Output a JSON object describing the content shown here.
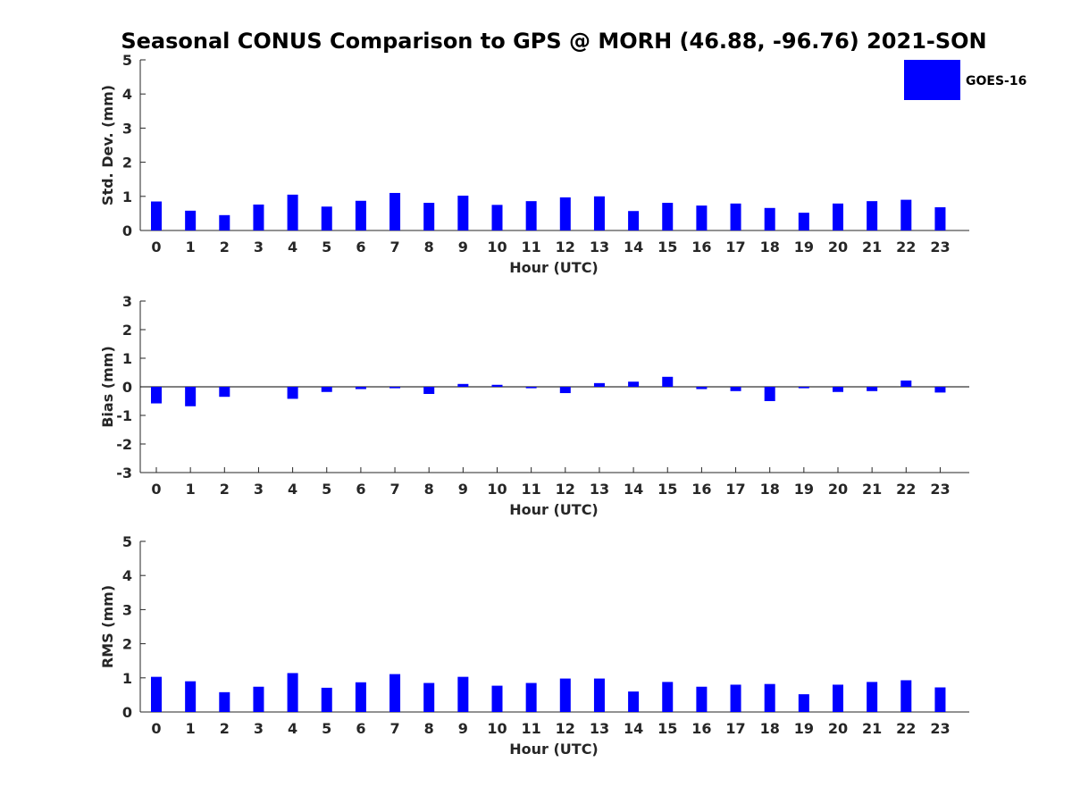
{
  "title": "Seasonal CONUS Comparison to GPS @ MORH (46.88, -96.76) 2021-SON",
  "legend": {
    "label": "GOES-16",
    "color": "#0000ff"
  },
  "chart_data": [
    {
      "type": "bar",
      "xlabel": "Hour (UTC)",
      "ylabel": "Std. Dev. (mm)",
      "ylim": [
        0,
        5
      ],
      "yticks": [
        "0",
        "1",
        "2",
        "3",
        "4",
        "5"
      ],
      "categories": [
        "0",
        "1",
        "2",
        "3",
        "4",
        "5",
        "6",
        "7",
        "8",
        "9",
        "10",
        "11",
        "12",
        "13",
        "14",
        "15",
        "16",
        "17",
        "18",
        "19",
        "20",
        "21",
        "22",
        "23"
      ],
      "series": [
        {
          "name": "GOES-16",
          "values": [
            0.85,
            0.58,
            0.45,
            0.76,
            1.05,
            0.7,
            0.87,
            1.1,
            0.81,
            1.02,
            0.75,
            0.86,
            0.97,
            1.0,
            0.57,
            0.81,
            0.73,
            0.79,
            0.66,
            0.52,
            0.79,
            0.86,
            0.9,
            0.68
          ]
        }
      ]
    },
    {
      "type": "bar",
      "xlabel": "Hour (UTC)",
      "ylabel": "Bias (mm)",
      "ylim": [
        -3,
        3
      ],
      "yticks": [
        "-3",
        "-2",
        "-1",
        "0",
        "1",
        "2",
        "3"
      ],
      "categories": [
        "0",
        "1",
        "2",
        "3",
        "4",
        "5",
        "6",
        "7",
        "8",
        "9",
        "10",
        "11",
        "12",
        "13",
        "14",
        "15",
        "16",
        "17",
        "18",
        "19",
        "20",
        "21",
        "22",
        "23"
      ],
      "series": [
        {
          "name": "GOES-16",
          "values": [
            -0.58,
            -0.68,
            -0.35,
            0.0,
            -0.42,
            -0.18,
            -0.08,
            -0.05,
            -0.25,
            0.1,
            0.07,
            -0.05,
            -0.22,
            0.13,
            0.18,
            0.35,
            -0.08,
            -0.15,
            -0.5,
            -0.05,
            -0.18,
            -0.15,
            0.22,
            -0.2
          ]
        }
      ]
    },
    {
      "type": "bar",
      "xlabel": "Hour (UTC)",
      "ylabel": "RMS (mm)",
      "ylim": [
        0,
        5
      ],
      "yticks": [
        "0",
        "1",
        "2",
        "3",
        "4",
        "5"
      ],
      "categories": [
        "0",
        "1",
        "2",
        "3",
        "4",
        "5",
        "6",
        "7",
        "8",
        "9",
        "10",
        "11",
        "12",
        "13",
        "14",
        "15",
        "16",
        "17",
        "18",
        "19",
        "20",
        "21",
        "22",
        "23"
      ],
      "series": [
        {
          "name": "GOES-16",
          "values": [
            1.03,
            0.9,
            0.58,
            0.74,
            1.14,
            0.71,
            0.87,
            1.11,
            0.85,
            1.03,
            0.77,
            0.85,
            0.98,
            0.98,
            0.6,
            0.88,
            0.74,
            0.8,
            0.82,
            0.52,
            0.8,
            0.88,
            0.93,
            0.72
          ]
        }
      ]
    }
  ]
}
